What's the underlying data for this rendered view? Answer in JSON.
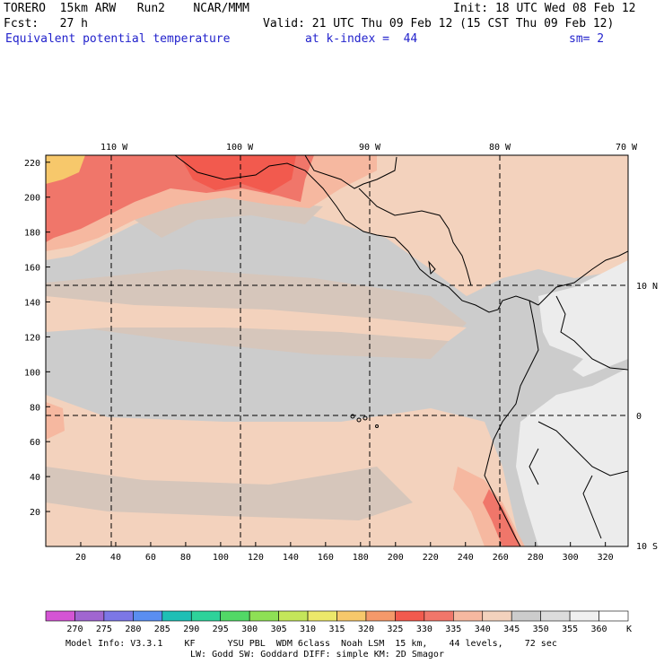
{
  "header": {
    "title": "TORERO  15km ARW   Run2    NCAR/MMM",
    "init": "Init: 18 UTC Wed 08 Feb 12",
    "fcst": "Fcst:   27 h",
    "valid": "Valid: 21 UTC Thu 09 Feb 12 (15 CST Thu 09 Feb 12)",
    "field": "Equivalent potential temperature",
    "level": "at k-index =  44",
    "smooth": "sm= 2"
  },
  "lon_labels": [
    "110 W",
    "100 W",
    "90 W",
    "80 W",
    "70 W"
  ],
  "lat_labels": [
    "10 N",
    "0",
    "10 S"
  ],
  "y_ticks": [
    "220",
    "200",
    "180",
    "160",
    "140",
    "120",
    "100",
    "80",
    "60",
    "40",
    "20"
  ],
  "x_ticks": [
    "20",
    "40",
    "60",
    "80",
    "100",
    "120",
    "140",
    "160",
    "180",
    "200",
    "220",
    "240",
    "260",
    "280",
    "300",
    "320"
  ],
  "colorbar": {
    "values": [
      "270",
      "275",
      "280",
      "285",
      "290",
      "295",
      "300",
      "305",
      "310",
      "315",
      "320",
      "325",
      "330",
      "335",
      "340",
      "345",
      "350",
      "355",
      "360"
    ],
    "unit": "K",
    "colors": [
      "#d455d4",
      "#a066d0",
      "#7c77e6",
      "#5a8ef0",
      "#1fbfb5",
      "#2ed29a",
      "#52d866",
      "#8ee055",
      "#c4e65a",
      "#ece86a",
      "#f7c86b",
      "#f4996a",
      "#f25a4e",
      "#f0766a",
      "#f6b8a0",
      "#f3d2bd",
      "#cccccc",
      "#dcdcdc",
      "#f0f0f0"
    ]
  },
  "footer": {
    "line1": "Model Info: V3.3.1    KF      YSU PBL  WDM 6class  Noah LSM  15 km,    44 levels,    72 sec",
    "line2": "LW: Godd SW: Goddard DIFF: simple KM: 2D Smagor"
  },
  "map_colors": {
    "base": "#cccccc",
    "warm_band": "#f3d2bd",
    "mid": "#d6c6bb",
    "orange": "#f6b8a0",
    "red": "#f25a4e",
    "red2": "#f0766a",
    "yellow": "#f7c86b",
    "light": "#ececec"
  }
}
